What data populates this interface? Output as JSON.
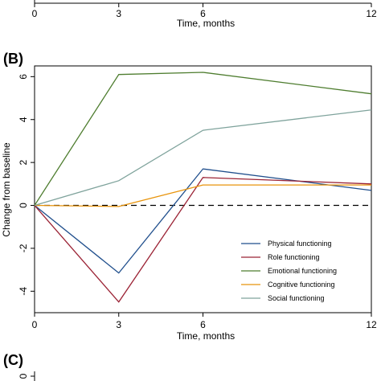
{
  "top_panel": {
    "xtick_labels": [
      "0",
      "3",
      "6",
      "12"
    ],
    "xlabel": "Time, months"
  },
  "chart_data": {
    "type": "line",
    "panel_label": "(B)",
    "xlabel": "Time, months",
    "ylabel": "Change from baseline",
    "x": [
      0,
      3,
      6,
      12
    ],
    "xticks": [
      "0",
      "3",
      "6",
      "12"
    ],
    "yticks": [
      "-4",
      "-2",
      "0",
      "2",
      "4",
      "6"
    ],
    "xlim": [
      0,
      12
    ],
    "ylim": [
      -5,
      6.5
    ],
    "reference_line": {
      "y": 0,
      "style": "dashed"
    },
    "legend_position": "bottom-right",
    "series": [
      {
        "name": "Physical functioning",
        "color": "#1f4e8c",
        "values": [
          0,
          -3.15,
          1.7,
          0.7
        ]
      },
      {
        "name": "Role functioning",
        "color": "#9b2335",
        "values": [
          0,
          -4.5,
          1.3,
          1.0
        ]
      },
      {
        "name": "Emotional functioning",
        "color": "#4e7d2f",
        "values": [
          0,
          6.1,
          6.2,
          5.2
        ]
      },
      {
        "name": "Cognitive functioning",
        "color": "#e8940c",
        "values": [
          0,
          -0.05,
          0.95,
          0.95
        ]
      },
      {
        "name": "Social functioning",
        "color": "#7fa39c",
        "values": [
          0,
          1.15,
          3.5,
          4.45
        ]
      }
    ]
  },
  "bottom_panel": {
    "panel_label": "(C)",
    "partial_tick": "0"
  }
}
